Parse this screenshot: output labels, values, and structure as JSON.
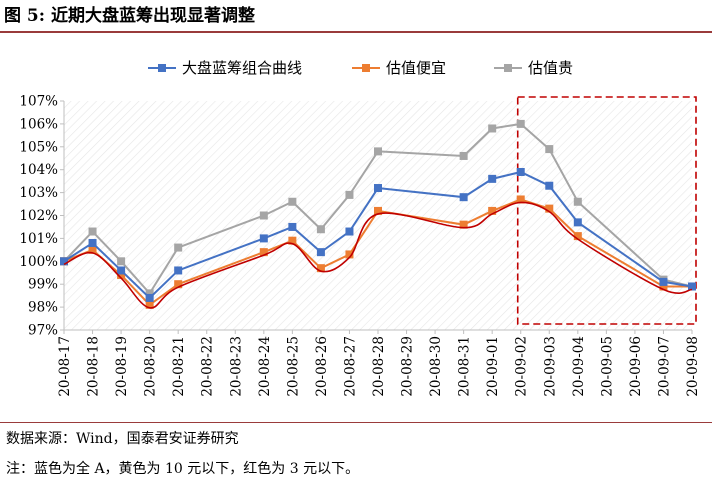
{
  "figure": {
    "title": "图 5:  近期大盘蓝筹出现显著调整",
    "source": "数据来源：Wind，国泰君安证券研究",
    "note": "注：蓝色为全 A，黄色为 10 元以下，红色为 3 元以下。"
  },
  "colors": {
    "blue": "#4472c4",
    "orange": "#ed7d31",
    "gray": "#a5a5a5",
    "red_line": "#c00000",
    "highlight_box": "#c00000"
  },
  "chart_data": {
    "type": "line",
    "categories": [
      "20-08-17",
      "20-08-18",
      "20-08-19",
      "20-08-20",
      "20-08-21",
      "20-08-22",
      "20-08-23",
      "20-08-24",
      "20-08-25",
      "20-08-26",
      "20-08-27",
      "20-08-28",
      "20-08-29",
      "20-08-30",
      "20-08-31",
      "20-09-01",
      "20-09-02",
      "20-09-03",
      "20-09-04",
      "20-09-05",
      "20-09-06",
      "20-09-07",
      "20-09-08"
    ],
    "series": [
      {
        "name": "大盘蓝筹组合曲线",
        "color": "#4472c4",
        "marker": "square",
        "values": [
          100.0,
          100.8,
          99.6,
          98.4,
          99.6,
          null,
          null,
          101.0,
          101.5,
          100.4,
          101.3,
          103.2,
          null,
          null,
          102.8,
          103.6,
          103.9,
          103.3,
          101.7,
          null,
          null,
          99.1,
          98.9
        ]
      },
      {
        "name": "估值便宜",
        "color": "#ed7d31",
        "marker": "square",
        "values": [
          100.0,
          100.5,
          99.4,
          98.1,
          99.0,
          null,
          null,
          100.4,
          100.9,
          99.7,
          100.3,
          102.2,
          null,
          null,
          101.6,
          102.2,
          102.7,
          102.3,
          101.1,
          null,
          null,
          98.9,
          98.9
        ]
      },
      {
        "name": "估值贵",
        "color": "#a5a5a5",
        "marker": "square",
        "values": [
          100.0,
          101.3,
          100.0,
          98.6,
          100.6,
          null,
          null,
          102.0,
          102.6,
          101.4,
          102.9,
          104.8,
          null,
          null,
          104.6,
          105.8,
          106.0,
          104.9,
          102.6,
          null,
          null,
          99.2,
          98.9
        ]
      }
    ],
    "ylim": [
      97,
      107
    ],
    "yticks": [
      "97%",
      "98%",
      "99%",
      "100%",
      "101%",
      "102%",
      "103%",
      "104%",
      "105%",
      "106%",
      "107%"
    ],
    "legend": "top",
    "grid": false,
    "highlight_range": [
      "20-09-02",
      "20-09-08"
    ]
  }
}
